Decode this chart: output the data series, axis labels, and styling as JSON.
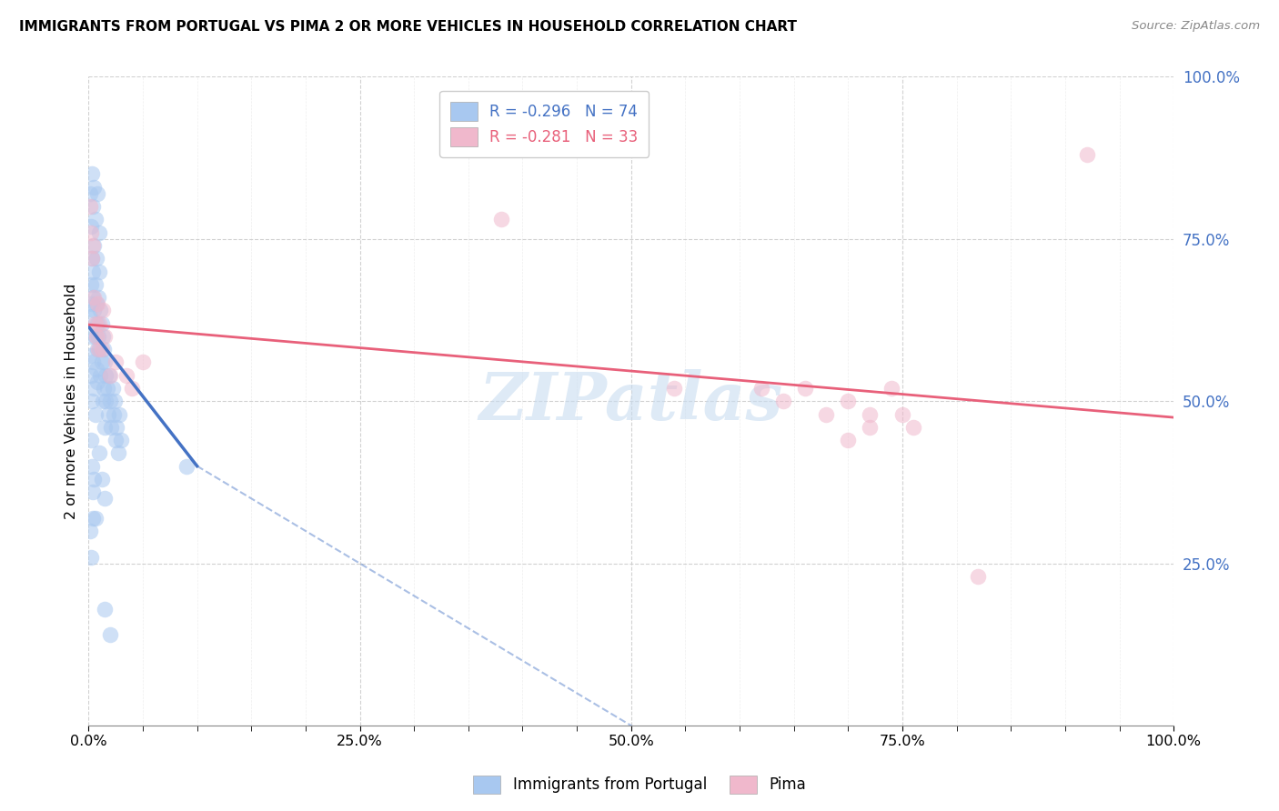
{
  "title": "IMMIGRANTS FROM PORTUGAL VS PIMA 2 OR MORE VEHICLES IN HOUSEHOLD CORRELATION CHART",
  "source": "Source: ZipAtlas.com",
  "ylabel": "2 or more Vehicles in Household",
  "legend_label1": "Immigrants from Portugal",
  "legend_label2": "Pima",
  "r1": "-0.296",
  "n1": "74",
  "r2": "-0.281",
  "n2": "33",
  "xlim": [
    0,
    1.0
  ],
  "ylim": [
    0,
    1.0
  ],
  "xtick_labels": [
    "0.0%",
    "",
    "",
    "",
    "",
    "25.0%",
    "",
    "",
    "",
    "",
    "50.0%",
    "",
    "",
    "",
    "",
    "75.0%",
    "",
    "",
    "",
    "",
    "100.0%"
  ],
  "xtick_vals": [
    0.0,
    0.05,
    0.1,
    0.15,
    0.2,
    0.25,
    0.3,
    0.35,
    0.4,
    0.45,
    0.5,
    0.55,
    0.6,
    0.65,
    0.7,
    0.75,
    0.8,
    0.85,
    0.9,
    0.95,
    1.0
  ],
  "xtick_major_vals": [
    0.0,
    0.25,
    0.5,
    0.75,
    1.0
  ],
  "xtick_major_labels": [
    "0.0%",
    "25.0%",
    "50.0%",
    "75.0%",
    "100.0%"
  ],
  "ytick_vals": [
    0.25,
    0.5,
    0.75,
    1.0
  ],
  "ytick_labels": [
    "25.0%",
    "50.0%",
    "75.0%",
    "100.0%"
  ],
  "color_blue": "#a8c8f0",
  "color_pink": "#f0b8cc",
  "line_blue": "#4472c4",
  "line_pink": "#e8607a",
  "watermark_text": "ZIPatlas",
  "watermark_color": "#c8dcf0",
  "blue_points": [
    [
      0.001,
      0.63
    ],
    [
      0.002,
      0.6
    ],
    [
      0.002,
      0.68
    ],
    [
      0.003,
      0.65
    ],
    [
      0.003,
      0.72
    ],
    [
      0.004,
      0.7
    ],
    [
      0.004,
      0.66
    ],
    [
      0.005,
      0.64
    ],
    [
      0.005,
      0.74
    ],
    [
      0.006,
      0.68
    ],
    [
      0.006,
      0.6
    ],
    [
      0.007,
      0.65
    ],
    [
      0.007,
      0.72
    ],
    [
      0.008,
      0.62
    ],
    [
      0.008,
      0.58
    ],
    [
      0.009,
      0.66
    ],
    [
      0.009,
      0.6
    ],
    [
      0.01,
      0.58
    ],
    [
      0.01,
      0.7
    ],
    [
      0.011,
      0.64
    ],
    [
      0.011,
      0.54
    ],
    [
      0.012,
      0.62
    ],
    [
      0.012,
      0.56
    ],
    [
      0.013,
      0.6
    ],
    [
      0.013,
      0.5
    ],
    [
      0.014,
      0.58
    ],
    [
      0.014,
      0.52
    ],
    [
      0.015,
      0.56
    ],
    [
      0.015,
      0.46
    ],
    [
      0.016,
      0.54
    ],
    [
      0.016,
      0.5
    ],
    [
      0.017,
      0.52
    ],
    [
      0.018,
      0.48
    ],
    [
      0.019,
      0.54
    ],
    [
      0.02,
      0.5
    ],
    [
      0.021,
      0.46
    ],
    [
      0.022,
      0.52
    ],
    [
      0.023,
      0.48
    ],
    [
      0.024,
      0.5
    ],
    [
      0.025,
      0.44
    ],
    [
      0.026,
      0.46
    ],
    [
      0.027,
      0.42
    ],
    [
      0.028,
      0.48
    ],
    [
      0.03,
      0.44
    ],
    [
      0.001,
      0.57
    ],
    [
      0.002,
      0.54
    ],
    [
      0.003,
      0.5
    ],
    [
      0.004,
      0.56
    ],
    [
      0.005,
      0.52
    ],
    [
      0.006,
      0.48
    ],
    [
      0.007,
      0.55
    ],
    [
      0.008,
      0.53
    ],
    [
      0.002,
      0.44
    ],
    [
      0.003,
      0.4
    ],
    [
      0.004,
      0.36
    ],
    [
      0.005,
      0.38
    ],
    [
      0.006,
      0.32
    ],
    [
      0.01,
      0.42
    ],
    [
      0.012,
      0.38
    ],
    [
      0.015,
      0.35
    ],
    [
      0.001,
      0.3
    ],
    [
      0.002,
      0.26
    ],
    [
      0.004,
      0.32
    ],
    [
      0.003,
      0.85
    ],
    [
      0.005,
      0.83
    ],
    [
      0.004,
      0.8
    ],
    [
      0.006,
      0.78
    ],
    [
      0.008,
      0.82
    ],
    [
      0.01,
      0.76
    ],
    [
      0.015,
      0.18
    ],
    [
      0.02,
      0.14
    ],
    [
      0.09,
      0.4
    ],
    [
      0.001,
      0.82
    ],
    [
      0.002,
      0.77
    ]
  ],
  "pink_points": [
    [
      0.001,
      0.8
    ],
    [
      0.002,
      0.76
    ],
    [
      0.003,
      0.72
    ],
    [
      0.004,
      0.74
    ],
    [
      0.005,
      0.66
    ],
    [
      0.006,
      0.62
    ],
    [
      0.007,
      0.6
    ],
    [
      0.008,
      0.65
    ],
    [
      0.009,
      0.58
    ],
    [
      0.01,
      0.62
    ],
    [
      0.012,
      0.58
    ],
    [
      0.013,
      0.64
    ],
    [
      0.015,
      0.6
    ],
    [
      0.02,
      0.54
    ],
    [
      0.025,
      0.56
    ],
    [
      0.035,
      0.54
    ],
    [
      0.04,
      0.52
    ],
    [
      0.05,
      0.56
    ],
    [
      0.38,
      0.78
    ],
    [
      0.54,
      0.52
    ],
    [
      0.62,
      0.52
    ],
    [
      0.64,
      0.5
    ],
    [
      0.66,
      0.52
    ],
    [
      0.68,
      0.48
    ],
    [
      0.7,
      0.5
    ],
    [
      0.72,
      0.48
    ],
    [
      0.74,
      0.52
    ],
    [
      0.76,
      0.46
    ],
    [
      0.7,
      0.44
    ],
    [
      0.72,
      0.46
    ],
    [
      0.75,
      0.48
    ],
    [
      0.82,
      0.23
    ],
    [
      0.92,
      0.88
    ]
  ],
  "blue_line_solid": [
    [
      0.0,
      0.615
    ],
    [
      0.1,
      0.4
    ]
  ],
  "blue_line_dash": [
    [
      0.1,
      0.4
    ],
    [
      0.58,
      -0.08
    ]
  ],
  "pink_line": [
    [
      0.0,
      0.618
    ],
    [
      1.0,
      0.475
    ]
  ]
}
